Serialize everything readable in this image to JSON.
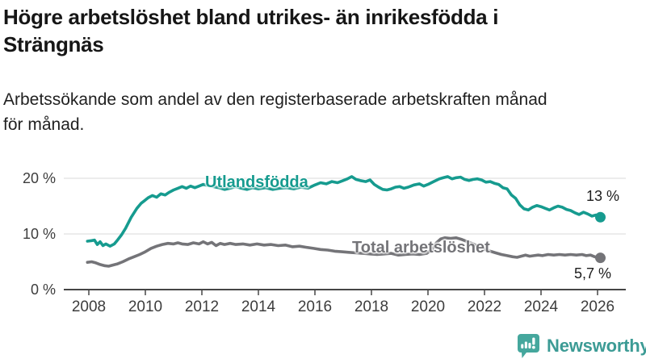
{
  "header": {
    "title": "Högre arbetslöshet bland utrikes- än inrikesfödda i\nSträngnäs",
    "subtitle": "Arbetssökande som andel av den registerbaserade arbetskraften månad\nför månad."
  },
  "footer": {
    "brand_name": "Newsworthy",
    "brand_color": "#3c9b95",
    "icon_color": "#45a79d"
  },
  "chart_data": {
    "type": "line",
    "title": "Högre arbetslöshet bland utrikes- än inrikesfödda i Strängnäs",
    "xlabel": "",
    "ylabel": "Arbetssökande som andel av den registerbaserade arbetskraften",
    "x_range": [
      2007.9,
      2026.6
    ],
    "ylim": [
      0,
      21
    ],
    "grid": "horizontal",
    "grid_color": "#d8d8d8",
    "axis_color": "#454545",
    "tick_label_color": "#3d3d3d",
    "y_ticks": [
      {
        "value": 0,
        "label": "0 %"
      },
      {
        "value": 10,
        "label": "10 %"
      },
      {
        "value": 20,
        "label": "20 %"
      }
    ],
    "x_ticks": [
      {
        "value": 2008,
        "label": "2008"
      },
      {
        "value": 2010,
        "label": "2010"
      },
      {
        "value": 2012,
        "label": "2012"
      },
      {
        "value": 2014,
        "label": "2014"
      },
      {
        "value": 2016,
        "label": "2016"
      },
      {
        "value": 2018,
        "label": "2018"
      },
      {
        "value": 2020,
        "label": "2020"
      },
      {
        "value": 2022,
        "label": "2022"
      },
      {
        "value": 2024,
        "label": "2024"
      },
      {
        "value": 2026,
        "label": "2026"
      }
    ],
    "series": [
      {
        "name": "Utlandsfödda",
        "color": "#169b8f",
        "end_label": "13 %",
        "end_value": 13.0,
        "points": [
          [
            2007.95,
            8.7
          ],
          [
            2008.1,
            8.8
          ],
          [
            2008.2,
            8.9
          ],
          [
            2008.3,
            8.1
          ],
          [
            2008.4,
            8.6
          ],
          [
            2008.5,
            7.9
          ],
          [
            2008.6,
            8.2
          ],
          [
            2008.75,
            7.8
          ],
          [
            2008.9,
            8.2
          ],
          [
            2009.0,
            8.8
          ],
          [
            2009.15,
            9.8
          ],
          [
            2009.3,
            11.0
          ],
          [
            2009.5,
            13.0
          ],
          [
            2009.7,
            14.6
          ],
          [
            2009.85,
            15.5
          ],
          [
            2009.95,
            15.9
          ],
          [
            2010.1,
            16.5
          ],
          [
            2010.25,
            16.9
          ],
          [
            2010.4,
            16.6
          ],
          [
            2010.55,
            17.2
          ],
          [
            2010.7,
            17.0
          ],
          [
            2010.85,
            17.5
          ],
          [
            2011.0,
            17.9
          ],
          [
            2011.15,
            18.2
          ],
          [
            2011.3,
            18.5
          ],
          [
            2011.45,
            18.2
          ],
          [
            2011.6,
            18.6
          ],
          [
            2011.75,
            18.3
          ],
          [
            2011.9,
            18.6
          ],
          [
            2012.05,
            18.9
          ],
          [
            2012.2,
            18.7
          ],
          [
            2012.4,
            18.5
          ],
          [
            2012.6,
            18.3
          ],
          [
            2012.8,
            18.0
          ],
          [
            2013.0,
            18.2
          ],
          [
            2013.2,
            18.5
          ],
          [
            2013.4,
            18.2
          ],
          [
            2013.6,
            18.0
          ],
          [
            2013.8,
            18.3
          ],
          [
            2014.0,
            18.1
          ],
          [
            2014.25,
            18.3
          ],
          [
            2014.5,
            18.0
          ],
          [
            2014.75,
            18.2
          ],
          [
            2015.0,
            18.3
          ],
          [
            2015.25,
            18.1
          ],
          [
            2015.5,
            18.4
          ],
          [
            2015.75,
            18.2
          ],
          [
            2016.0,
            18.8
          ],
          [
            2016.2,
            19.2
          ],
          [
            2016.4,
            19.0
          ],
          [
            2016.6,
            19.4
          ],
          [
            2016.8,
            19.2
          ],
          [
            2017.0,
            19.6
          ],
          [
            2017.15,
            19.9
          ],
          [
            2017.3,
            20.3
          ],
          [
            2017.45,
            19.8
          ],
          [
            2017.6,
            19.6
          ],
          [
            2017.8,
            19.4
          ],
          [
            2017.95,
            19.7
          ],
          [
            2018.1,
            18.9
          ],
          [
            2018.25,
            18.4
          ],
          [
            2018.4,
            18.0
          ],
          [
            2018.55,
            17.9
          ],
          [
            2018.7,
            18.1
          ],
          [
            2018.85,
            18.4
          ],
          [
            2019.0,
            18.5
          ],
          [
            2019.15,
            18.2
          ],
          [
            2019.3,
            18.4
          ],
          [
            2019.5,
            18.8
          ],
          [
            2019.7,
            19.0
          ],
          [
            2019.85,
            18.6
          ],
          [
            2020.0,
            18.9
          ],
          [
            2020.2,
            19.4
          ],
          [
            2020.4,
            19.9
          ],
          [
            2020.55,
            20.1
          ],
          [
            2020.7,
            20.3
          ],
          [
            2020.85,
            19.9
          ],
          [
            2021.0,
            20.1
          ],
          [
            2021.15,
            20.2
          ],
          [
            2021.3,
            19.8
          ],
          [
            2021.45,
            19.6
          ],
          [
            2021.6,
            19.8
          ],
          [
            2021.75,
            19.9
          ],
          [
            2021.9,
            19.7
          ],
          [
            2022.05,
            19.3
          ],
          [
            2022.2,
            19.4
          ],
          [
            2022.35,
            19.1
          ],
          [
            2022.5,
            18.9
          ],
          [
            2022.65,
            18.3
          ],
          [
            2022.8,
            18.1
          ],
          [
            2022.95,
            17.0
          ],
          [
            2023.1,
            16.4
          ],
          [
            2023.25,
            15.2
          ],
          [
            2023.4,
            14.5
          ],
          [
            2023.55,
            14.3
          ],
          [
            2023.7,
            14.8
          ],
          [
            2023.85,
            15.1
          ],
          [
            2024.0,
            14.9
          ],
          [
            2024.15,
            14.6
          ],
          [
            2024.3,
            14.3
          ],
          [
            2024.45,
            14.7
          ],
          [
            2024.6,
            15.0
          ],
          [
            2024.75,
            14.8
          ],
          [
            2024.9,
            14.4
          ],
          [
            2025.05,
            14.2
          ],
          [
            2025.2,
            13.8
          ],
          [
            2025.35,
            13.5
          ],
          [
            2025.5,
            13.9
          ],
          [
            2025.65,
            13.6
          ],
          [
            2025.8,
            13.2
          ],
          [
            2025.95,
            13.4
          ],
          [
            2026.1,
            13.0
          ]
        ]
      },
      {
        "name": "Total arbetslöshet",
        "color": "#747478",
        "end_label": "5,7 %",
        "end_value": 5.7,
        "points": [
          [
            2007.95,
            4.9
          ],
          [
            2008.1,
            5.0
          ],
          [
            2008.25,
            4.8
          ],
          [
            2008.4,
            4.5
          ],
          [
            2008.55,
            4.3
          ],
          [
            2008.7,
            4.2
          ],
          [
            2008.85,
            4.4
          ],
          [
            2009.0,
            4.6
          ],
          [
            2009.2,
            5.0
          ],
          [
            2009.4,
            5.5
          ],
          [
            2009.6,
            5.9
          ],
          [
            2009.8,
            6.3
          ],
          [
            2010.0,
            6.8
          ],
          [
            2010.2,
            7.4
          ],
          [
            2010.4,
            7.8
          ],
          [
            2010.6,
            8.1
          ],
          [
            2010.8,
            8.3
          ],
          [
            2011.0,
            8.2
          ],
          [
            2011.15,
            8.4
          ],
          [
            2011.3,
            8.2
          ],
          [
            2011.5,
            8.1
          ],
          [
            2011.7,
            8.4
          ],
          [
            2011.9,
            8.2
          ],
          [
            2012.05,
            8.6
          ],
          [
            2012.2,
            8.2
          ],
          [
            2012.35,
            8.5
          ],
          [
            2012.5,
            7.9
          ],
          [
            2012.65,
            8.3
          ],
          [
            2012.8,
            8.1
          ],
          [
            2013.0,
            8.3
          ],
          [
            2013.2,
            8.1
          ],
          [
            2013.45,
            8.2
          ],
          [
            2013.7,
            8.0
          ],
          [
            2013.95,
            8.2
          ],
          [
            2014.2,
            8.0
          ],
          [
            2014.45,
            8.1
          ],
          [
            2014.7,
            7.9
          ],
          [
            2014.95,
            8.0
          ],
          [
            2015.2,
            7.7
          ],
          [
            2015.45,
            7.8
          ],
          [
            2015.7,
            7.6
          ],
          [
            2015.95,
            7.4
          ],
          [
            2016.2,
            7.2
          ],
          [
            2016.45,
            7.1
          ],
          [
            2016.7,
            6.9
          ],
          [
            2016.95,
            6.8
          ],
          [
            2017.2,
            6.7
          ],
          [
            2017.45,
            6.6
          ],
          [
            2017.7,
            6.5
          ],
          [
            2017.95,
            6.4
          ],
          [
            2018.2,
            6.3
          ],
          [
            2018.45,
            6.4
          ],
          [
            2018.7,
            6.5
          ],
          [
            2018.95,
            6.2
          ],
          [
            2019.2,
            6.3
          ],
          [
            2019.45,
            6.4
          ],
          [
            2019.7,
            6.3
          ],
          [
            2019.95,
            6.5
          ],
          [
            2020.15,
            7.2
          ],
          [
            2020.3,
            8.4
          ],
          [
            2020.45,
            9.1
          ],
          [
            2020.6,
            9.3
          ],
          [
            2020.8,
            9.2
          ],
          [
            2021.0,
            9.3
          ],
          [
            2021.2,
            9.0
          ],
          [
            2021.4,
            8.6
          ],
          [
            2021.6,
            8.2
          ],
          [
            2021.8,
            7.7
          ],
          [
            2022.0,
            7.2
          ],
          [
            2022.2,
            6.9
          ],
          [
            2022.4,
            6.6
          ],
          [
            2022.6,
            6.3
          ],
          [
            2022.8,
            6.1
          ],
          [
            2023.0,
            5.9
          ],
          [
            2023.15,
            5.8
          ],
          [
            2023.3,
            6.0
          ],
          [
            2023.45,
            6.2
          ],
          [
            2023.6,
            6.0
          ],
          [
            2023.75,
            6.1
          ],
          [
            2023.9,
            6.2
          ],
          [
            2024.05,
            6.1
          ],
          [
            2024.25,
            6.3
          ],
          [
            2024.45,
            6.2
          ],
          [
            2024.65,
            6.3
          ],
          [
            2024.85,
            6.2
          ],
          [
            2025.05,
            6.3
          ],
          [
            2025.25,
            6.2
          ],
          [
            2025.45,
            6.3
          ],
          [
            2025.6,
            6.1
          ],
          [
            2025.75,
            6.2
          ],
          [
            2025.9,
            5.9
          ],
          [
            2026.1,
            5.7
          ]
        ]
      }
    ],
    "legend_position": "inline-labels"
  }
}
